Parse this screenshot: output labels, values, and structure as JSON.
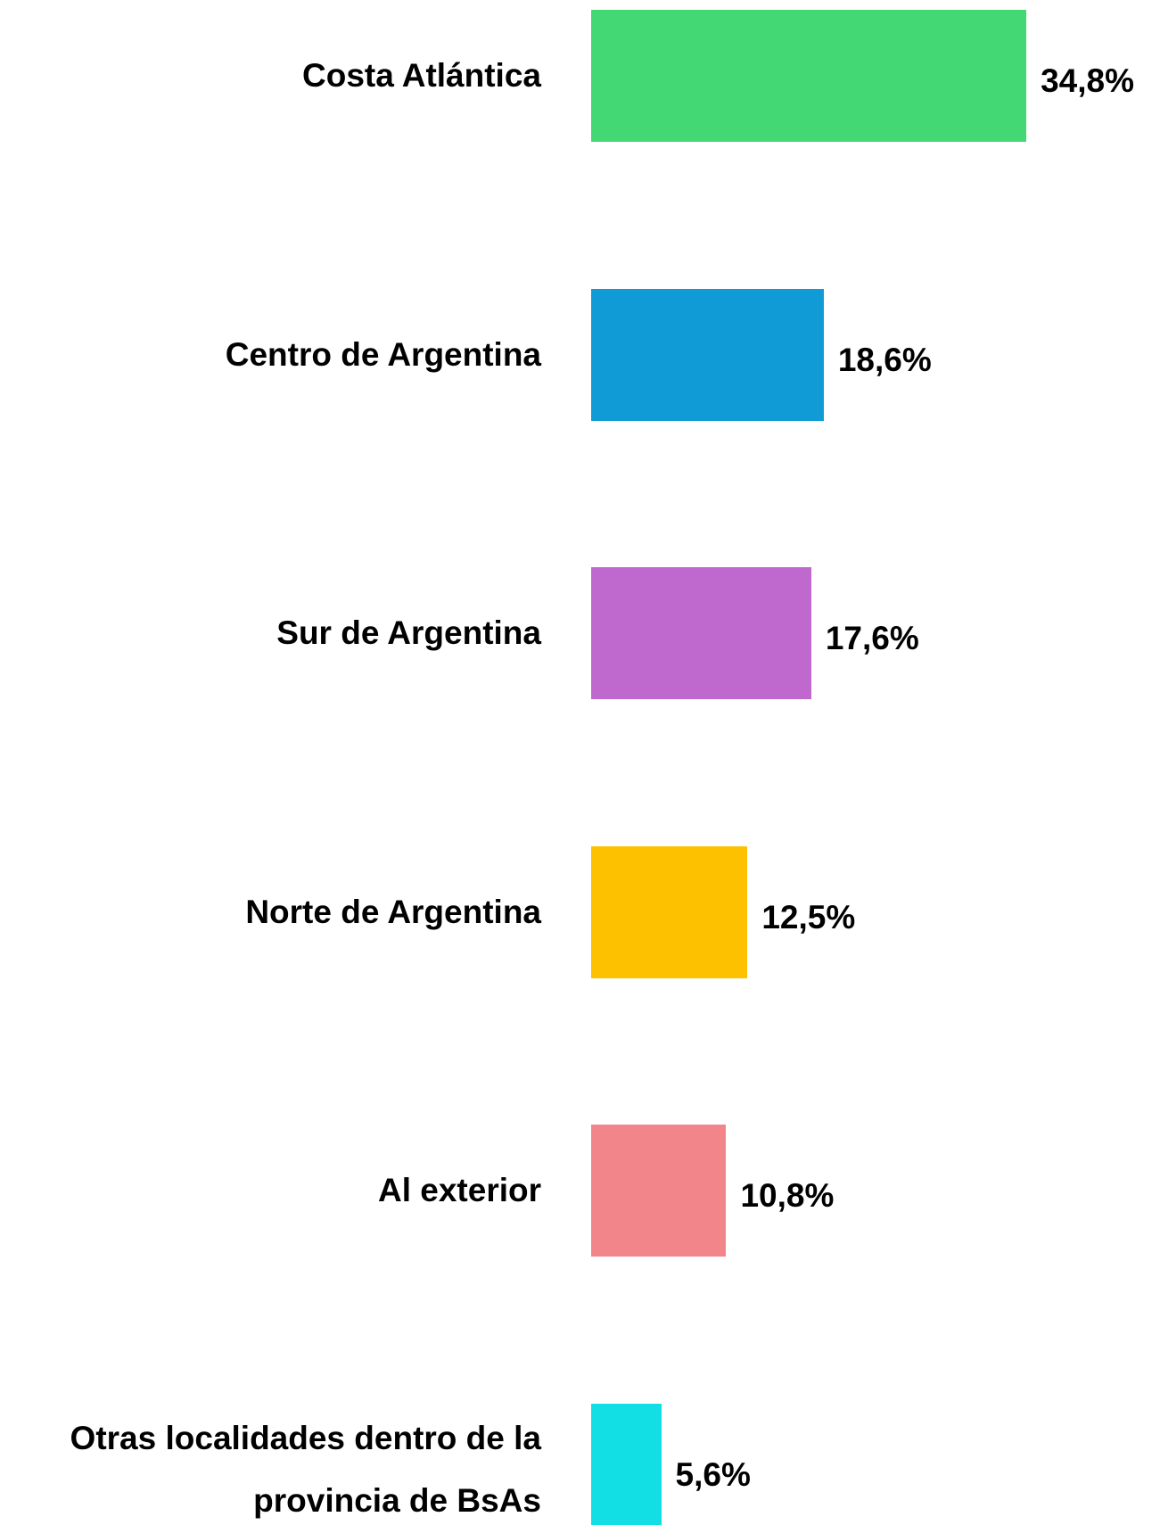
{
  "chart_data": {
    "type": "bar",
    "orientation": "horizontal",
    "categories": [
      "Costa Atlántica",
      "Centro de Argentina",
      "Sur de Argentina",
      "Norte de Argentina",
      "Al exterior",
      "Otras localidades dentro de la provincia de BsAs"
    ],
    "values": [
      34.8,
      18.6,
      17.6,
      12.5,
      10.8,
      5.6
    ],
    "value_labels": [
      "34,8%",
      "18,6%",
      "17,6%",
      "12,5%",
      "10,8%",
      "5,6%"
    ],
    "colors": [
      "#43d874",
      "#119bd6",
      "#bf69cf",
      "#fdc100",
      "#f2858a",
      "#12dfe4"
    ],
    "xlim": [
      0,
      40
    ]
  }
}
